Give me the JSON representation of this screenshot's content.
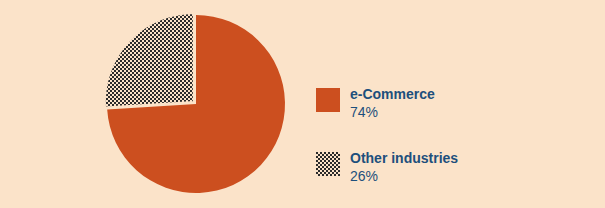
{
  "chart_data": {
    "type": "pie",
    "categories": [
      "e-Commerce",
      "Other industries"
    ],
    "values": [
      74,
      26
    ],
    "value_labels": [
      "74%",
      "26%"
    ],
    "colors": [
      "#cc4f1f",
      "#2b2b2b"
    ],
    "legend": "right"
  }
}
